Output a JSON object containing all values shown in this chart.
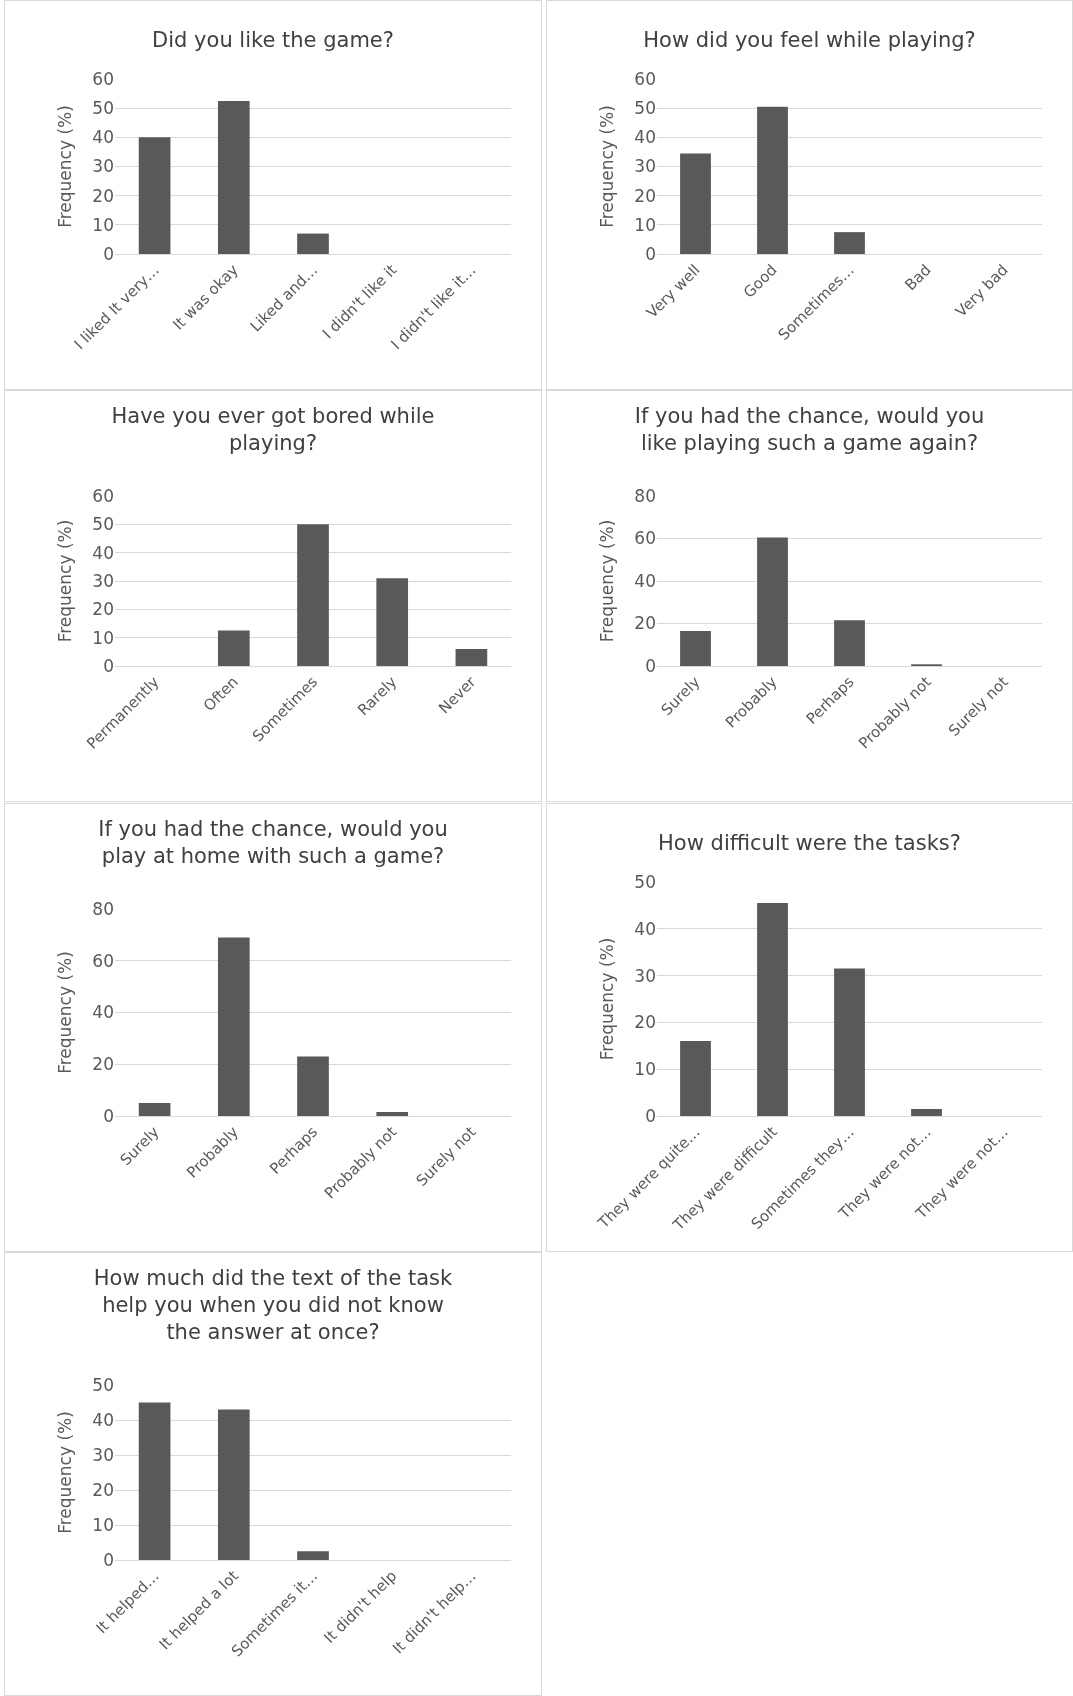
{
  "chart_data": [
    {
      "type": "bar",
      "title": "Did you like the game?",
      "ylabel": "Frequency (%)",
      "categories": [
        "I liked It very…",
        "It was okay",
        "Liked and…",
        "I didn't like it",
        "I didn't like it…"
      ],
      "values": [
        40,
        52.5,
        7,
        0,
        0
      ],
      "color": "#595959",
      "ylim": [
        0,
        60
      ],
      "yticks": [
        0,
        10,
        20,
        30,
        40,
        50,
        60
      ],
      "grid": "y",
      "legend": false
    },
    {
      "type": "bar",
      "title": "How did you feel while playing?",
      "ylabel": "Frequency (%)",
      "categories": [
        "Very well",
        "Good",
        "Sometimes…",
        "Bad",
        "Very bad"
      ],
      "values": [
        34.5,
        50.5,
        7.5,
        0,
        0
      ],
      "color": "#595959",
      "ylim": [
        0,
        60
      ],
      "yticks": [
        0,
        10,
        20,
        30,
        40,
        50,
        60
      ],
      "grid": "y",
      "legend": false
    },
    {
      "type": "bar",
      "title": "Have you ever got bored while playing?",
      "ylabel": "Frequency (%)",
      "categories": [
        "Permanently",
        "Often",
        "Sometimes",
        "Rarely",
        "Never"
      ],
      "values": [
        0,
        12.5,
        50,
        31,
        6
      ],
      "color": "#595959",
      "ylim": [
        0,
        60
      ],
      "yticks": [
        0,
        10,
        20,
        30,
        40,
        50,
        60
      ],
      "grid": "y",
      "legend": false
    },
    {
      "type": "bar",
      "title": "If you had the chance, would you like playing such a game again?",
      "ylabel": "Frequency (%)",
      "categories": [
        "Surely",
        "Probably",
        "Perhaps",
        "Probably not",
        "Surely not"
      ],
      "values": [
        16.5,
        60.5,
        21.5,
        0.8,
        0
      ],
      "color": "#595959",
      "ylim": [
        0,
        80
      ],
      "yticks": [
        0,
        20,
        40,
        60,
        80
      ],
      "grid": "y",
      "legend": false
    },
    {
      "type": "bar",
      "title": "If you had the chance, would you play at home with such a game?",
      "ylabel": "Frequency (%)",
      "categories": [
        "Surely",
        "Probably",
        "Perhaps",
        "Probably not",
        "Surely not"
      ],
      "values": [
        5,
        69,
        23,
        1.5,
        0
      ],
      "color": "#595959",
      "ylim": [
        0,
        80
      ],
      "yticks": [
        0,
        20,
        40,
        60,
        80
      ],
      "grid": "y",
      "legend": false
    },
    {
      "type": "bar",
      "title": "How difficult were the tasks?",
      "ylabel": "Frequency (%)",
      "categories": [
        "They were quite…",
        "They were difficult",
        "Sometimes they…",
        "They were not…",
        "They were not…"
      ],
      "values": [
        16,
        45.5,
        31.5,
        1.5,
        0
      ],
      "color": "#595959",
      "ylim": [
        0,
        50
      ],
      "yticks": [
        0,
        10,
        20,
        30,
        40,
        50
      ],
      "grid": "y",
      "legend": false
    },
    {
      "type": "bar",
      "title": "How much did the text of the task help you when you did not know the answer at once?",
      "ylabel": "Frequency (%)",
      "categories": [
        "It helped…",
        "It helped a lot",
        "Sometimes it…",
        "It didn't help",
        "It didn't help…"
      ],
      "values": [
        45,
        43,
        2.5,
        0,
        0
      ],
      "color": "#595959",
      "ylim": [
        0,
        50
      ],
      "yticks": [
        0,
        10,
        20,
        30,
        40,
        50
      ],
      "grid": "y",
      "legend": false
    }
  ]
}
